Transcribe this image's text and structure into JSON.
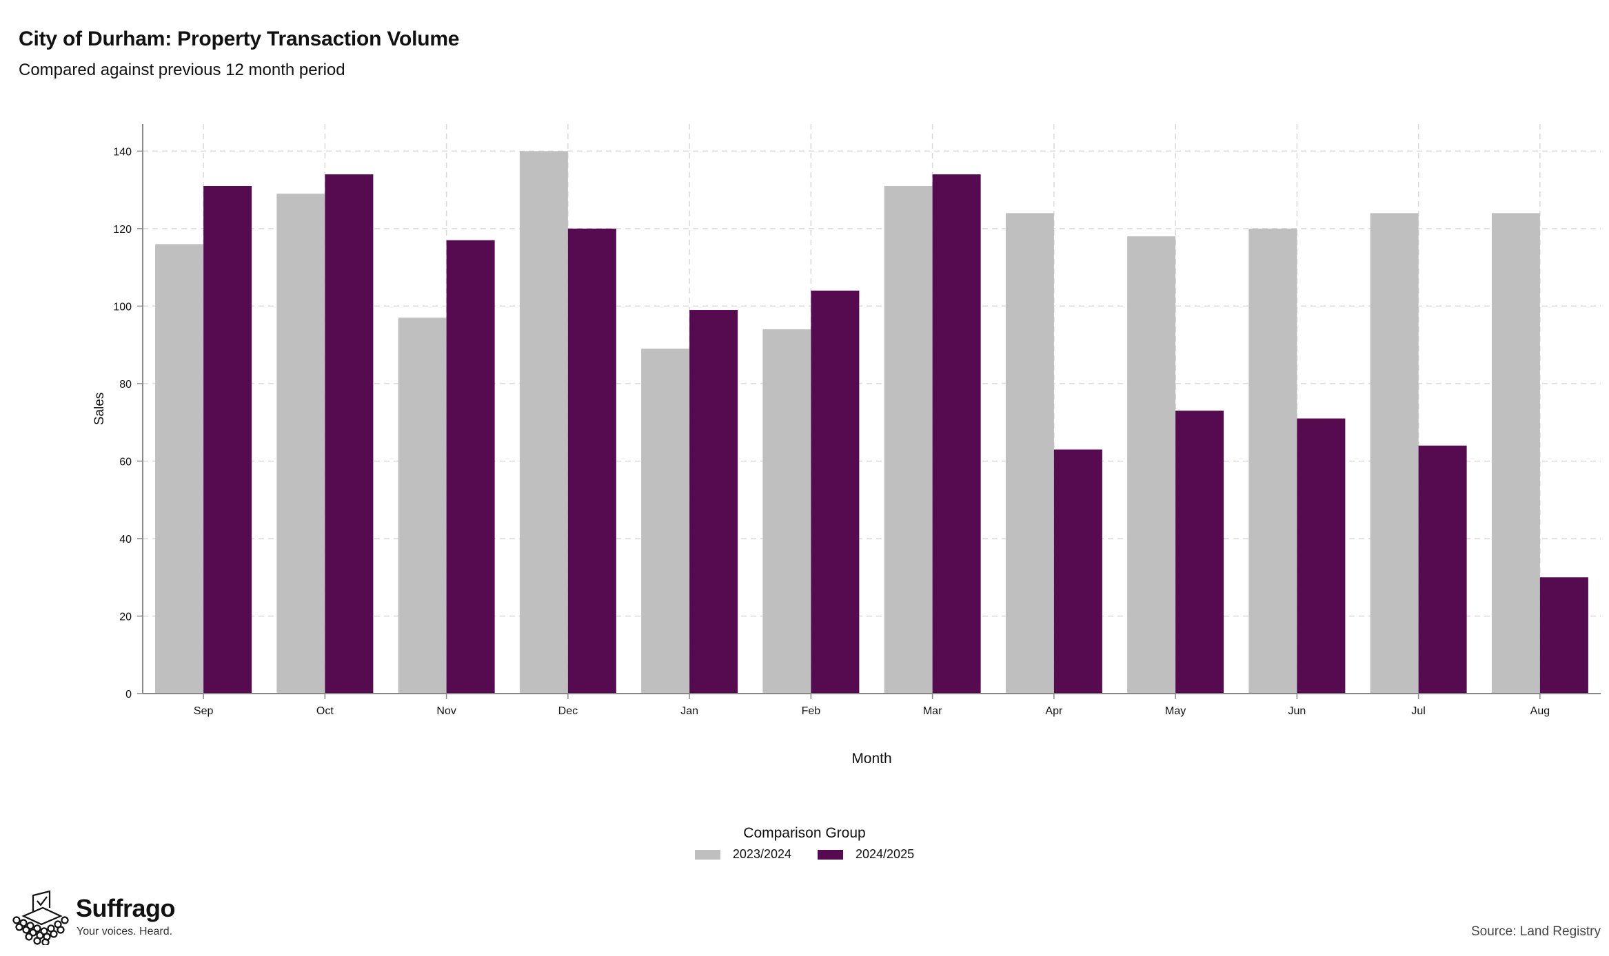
{
  "title": "City of Durham: Property Transaction Volume",
  "subtitle": "Compared against previous 12 month period",
  "legend_title": "Comparison Group",
  "source": "Source: Land Registry",
  "logo": {
    "name": "Suffrago",
    "tagline": "Your voices. Heard.",
    "icon": "ballot-box-icon"
  },
  "colors": {
    "series1": "#bfbfbf",
    "series2": "#560b51",
    "grid": "#d9d9d9",
    "axis": "#888888"
  },
  "chart_data": {
    "type": "bar",
    "title": "City of Durham: Property Transaction Volume",
    "subtitle": "Compared against previous 12 month period",
    "xlabel": "Month",
    "ylabel": "Sales",
    "ylim": [
      0,
      147
    ],
    "yticks": [
      0,
      20,
      40,
      60,
      80,
      100,
      120,
      140
    ],
    "grid": true,
    "legend_position": "bottom",
    "categories": [
      "Sep",
      "Oct",
      "Nov",
      "Dec",
      "Jan",
      "Feb",
      "Mar",
      "Apr",
      "May",
      "Jun",
      "Jul",
      "Aug"
    ],
    "series": [
      {
        "name": "2023/2024",
        "color": "#bfbfbf",
        "values": [
          116,
          129,
          97,
          140,
          89,
          94,
          131,
          124,
          118,
          120,
          124,
          124
        ]
      },
      {
        "name": "2024/2025",
        "color": "#560b51",
        "values": [
          131,
          134,
          117,
          120,
          99,
          104,
          134,
          63,
          73,
          71,
          64,
          30
        ]
      }
    ]
  }
}
